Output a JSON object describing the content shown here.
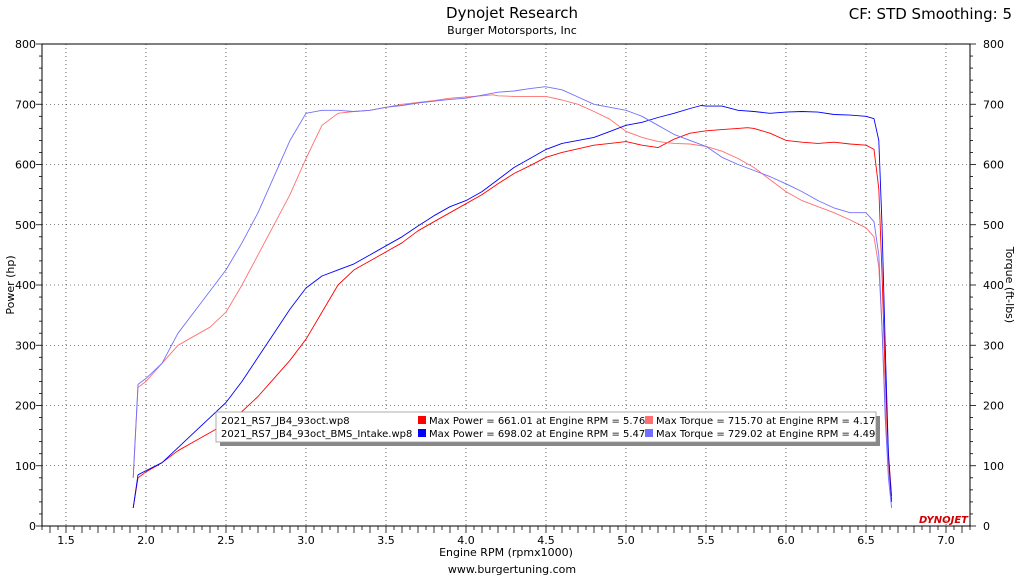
{
  "header": {
    "title": "Dynojet Research",
    "subtitle": "Burger Motorsports, Inc",
    "settings": "CF: STD Smoothing: 5"
  },
  "footer": {
    "url": "www.burgertuning.com"
  },
  "brand_logo": "DYNOJET",
  "colors": {
    "run1_power": "#ff0000",
    "run1_torque": "#ff7070",
    "run2_power": "#0000ff",
    "run2_torque": "#7070ff"
  },
  "chart_data": {
    "type": "line",
    "xlabel": "Engine RPM (rpmx1000)",
    "ylabel": "Power (hp)",
    "y2label": "Torque (ft-lbs)",
    "xlim": [
      1.35,
      7.15
    ],
    "ylim": [
      0,
      800
    ],
    "y2lim": [
      0,
      800
    ],
    "x_ticks": [
      "1.5",
      "2.0",
      "2.5",
      "3.0",
      "3.5",
      "4.0",
      "4.5",
      "5.0",
      "5.5",
      "6.0",
      "6.5",
      "7.0"
    ],
    "y_ticks": [
      "0",
      "100",
      "200",
      "300",
      "400",
      "500",
      "600",
      "700",
      "800"
    ],
    "grid": true,
    "legend": {
      "placement": "bottom-center",
      "runs": [
        {
          "file": "2021_RS7_JB4_93oct.wp8",
          "power_text": "Max Power = 661.01 at Engine RPM = 5.76",
          "torque_text": "Max Torque = 715.70 at Engine RPM = 4.17"
        },
        {
          "file": "2021_RS7_JB4_93oct_BMS_Intake.wp8",
          "power_text": "Max Power = 698.02 at Engine RPM = 5.47",
          "torque_text": "Max Torque = 729.02 at Engine RPM = 4.49"
        }
      ]
    },
    "series": [
      {
        "name": "2021_RS7_JB4_93oct.wp8 Power",
        "color": "#ff0000",
        "axis": "left",
        "x": [
          1.92,
          1.95,
          2.0,
          2.1,
          2.2,
          2.3,
          2.4,
          2.5,
          2.6,
          2.7,
          2.8,
          2.9,
          3.0,
          3.1,
          3.2,
          3.3,
          3.4,
          3.5,
          3.6,
          3.7,
          3.8,
          3.9,
          4.0,
          4.1,
          4.2,
          4.3,
          4.4,
          4.5,
          4.6,
          4.7,
          4.8,
          4.9,
          5.0,
          5.1,
          5.2,
          5.3,
          5.4,
          5.5,
          5.6,
          5.7,
          5.76,
          5.8,
          5.9,
          6.0,
          6.1,
          6.2,
          6.3,
          6.4,
          6.5,
          6.55,
          6.58,
          6.6,
          6.62,
          6.64,
          6.66
        ],
        "y": [
          30,
          80,
          90,
          105,
          125,
          140,
          155,
          170,
          190,
          215,
          245,
          275,
          310,
          355,
          400,
          425,
          440,
          455,
          470,
          490,
          505,
          520,
          535,
          550,
          568,
          585,
          598,
          612,
          620,
          626,
          632,
          635,
          638,
          632,
          628,
          642,
          652,
          656,
          658,
          660,
          661,
          660,
          652,
          640,
          637,
          635,
          637,
          634,
          632,
          625,
          560,
          420,
          250,
          120,
          50
        ]
      },
      {
        "name": "2021_RS7_JB4_93oct.wp8 Torque",
        "color": "#ff7070",
        "axis": "right",
        "x": [
          1.92,
          1.95,
          2.0,
          2.1,
          2.2,
          2.3,
          2.4,
          2.5,
          2.6,
          2.7,
          2.8,
          2.9,
          3.0,
          3.1,
          3.2,
          3.3,
          3.4,
          3.5,
          3.6,
          3.7,
          3.8,
          3.9,
          4.0,
          4.1,
          4.17,
          4.2,
          4.3,
          4.4,
          4.5,
          4.6,
          4.7,
          4.8,
          4.9,
          5.0,
          5.1,
          5.2,
          5.3,
          5.4,
          5.5,
          5.6,
          5.7,
          5.8,
          5.9,
          6.0,
          6.1,
          6.2,
          6.3,
          6.4,
          6.5,
          6.55,
          6.58,
          6.6,
          6.62,
          6.64,
          6.66
        ],
        "y": [
          80,
          230,
          240,
          270,
          300,
          315,
          330,
          355,
          400,
          450,
          500,
          550,
          610,
          665,
          685,
          688,
          690,
          695,
          700,
          703,
          706,
          710,
          712,
          714,
          715.7,
          714,
          713,
          713,
          713,
          707,
          700,
          688,
          675,
          655,
          645,
          638,
          635,
          634,
          630,
          622,
          610,
          595,
          575,
          555,
          540,
          530,
          520,
          508,
          495,
          480,
          430,
          330,
          200,
          100,
          40
        ]
      },
      {
        "name": "2021_RS7_JB4_93oct_BMS_Intake.wp8 Power",
        "color": "#0000ff",
        "axis": "left",
        "x": [
          1.92,
          1.95,
          2.0,
          2.1,
          2.2,
          2.3,
          2.4,
          2.5,
          2.6,
          2.7,
          2.8,
          2.9,
          3.0,
          3.1,
          3.2,
          3.3,
          3.4,
          3.5,
          3.6,
          3.7,
          3.8,
          3.9,
          4.0,
          4.1,
          4.2,
          4.3,
          4.4,
          4.5,
          4.6,
          4.7,
          4.8,
          4.9,
          5.0,
          5.1,
          5.2,
          5.3,
          5.4,
          5.47,
          5.5,
          5.6,
          5.7,
          5.8,
          5.9,
          6.0,
          6.1,
          6.2,
          6.3,
          6.4,
          6.5,
          6.55,
          6.58,
          6.6,
          6.62,
          6.64,
          6.66
        ],
        "y": [
          30,
          85,
          92,
          105,
          130,
          155,
          180,
          205,
          240,
          280,
          320,
          360,
          395,
          415,
          425,
          435,
          450,
          465,
          480,
          498,
          515,
          530,
          540,
          555,
          575,
          595,
          610,
          625,
          635,
          640,
          645,
          655,
          665,
          670,
          678,
          685,
          693,
          698,
          697,
          697,
          690,
          688,
          685,
          687,
          688,
          687,
          683,
          682,
          680,
          676,
          640,
          500,
          300,
          120,
          40
        ]
      },
      {
        "name": "2021_RS7_JB4_93oct_BMS_Intake.wp8 Torque",
        "color": "#7070ff",
        "axis": "right",
        "x": [
          1.92,
          1.95,
          2.0,
          2.1,
          2.2,
          2.3,
          2.4,
          2.5,
          2.6,
          2.7,
          2.8,
          2.9,
          3.0,
          3.1,
          3.2,
          3.3,
          3.4,
          3.5,
          3.6,
          3.7,
          3.8,
          3.9,
          4.0,
          4.1,
          4.2,
          4.3,
          4.4,
          4.49,
          4.5,
          4.6,
          4.7,
          4.8,
          4.9,
          5.0,
          5.1,
          5.2,
          5.3,
          5.4,
          5.5,
          5.6,
          5.7,
          5.8,
          5.9,
          6.0,
          6.1,
          6.2,
          6.3,
          6.4,
          6.5,
          6.55,
          6.58,
          6.6,
          6.62,
          6.64,
          6.66
        ],
        "y": [
          80,
          235,
          245,
          270,
          320,
          355,
          390,
          425,
          470,
          520,
          580,
          640,
          685,
          690,
          690,
          688,
          690,
          695,
          698,
          702,
          705,
          708,
          710,
          715,
          720,
          722,
          726,
          729.02,
          729,
          724,
          712,
          700,
          695,
          690,
          680,
          665,
          650,
          640,
          630,
          612,
          600,
          590,
          580,
          568,
          555,
          540,
          528,
          520,
          520,
          505,
          450,
          330,
          180,
          80,
          30
        ]
      }
    ]
  }
}
